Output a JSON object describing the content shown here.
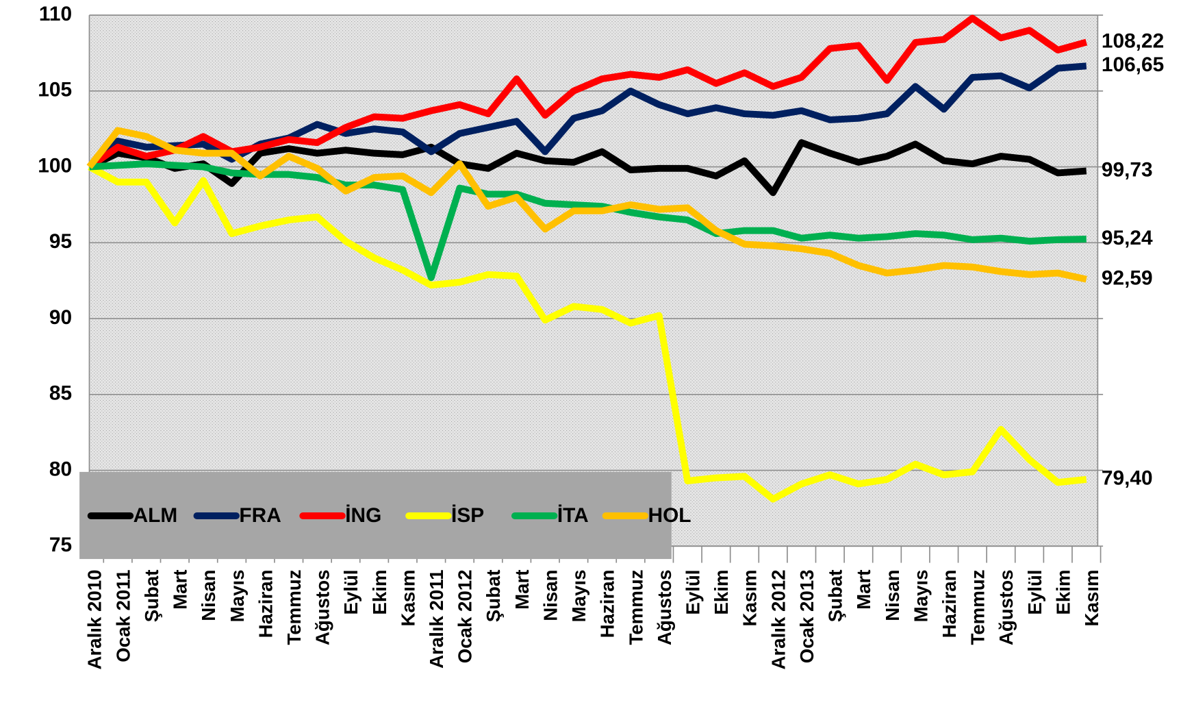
{
  "chart_data": {
    "type": "line",
    "categories": [
      "Aralık 2010",
      "Ocak 2011",
      "Şubat",
      "Mart",
      "Nisan",
      "Mayıs",
      "Haziran",
      "Temmuz",
      "Ağustos",
      "Eylül",
      "Ekim",
      "Kasım",
      "Aralık 2011",
      "Ocak 2012",
      "Şubat",
      "Mart",
      "Nisan",
      "Mayıs",
      "Haziran",
      "Temmuz",
      "Ağustos",
      "Eylül",
      "Ekim",
      "Kasım",
      "Aralık 2012",
      "Ocak 2013",
      "Şubat",
      "Mart",
      "Nisan",
      "Mayıs",
      "Haziran",
      "Temmuz",
      "Ağustos",
      "Eylül",
      "Ekim",
      "Kasım"
    ],
    "ylim": [
      75,
      110
    ],
    "yticks": [
      75,
      80,
      85,
      90,
      95,
      100,
      105,
      110
    ],
    "grid": true,
    "series": [
      {
        "name": "ALM",
        "color": "#000000",
        "values": [
          100,
          100.9,
          100.6,
          99.9,
          100.2,
          98.9,
          100.9,
          101.2,
          100.9,
          101.1,
          100.9,
          100.8,
          101.3,
          100.2,
          99.9,
          100.9,
          100.4,
          100.3,
          101.0,
          99.8,
          99.9,
          99.9,
          99.4,
          100.4,
          98.3,
          101.6,
          100.9,
          100.3,
          100.7,
          101.5,
          100.4,
          100.2,
          100.7,
          100.5,
          99.6,
          99.73
        ],
        "value_labels": [
          null,
          null,
          null,
          null,
          null,
          null,
          null,
          null,
          null,
          null,
          null,
          null,
          null,
          null,
          null,
          null,
          null,
          null,
          null,
          null,
          null,
          null,
          null,
          null,
          null,
          null,
          null,
          null,
          null,
          null,
          null,
          null,
          null,
          null,
          null,
          "99,73"
        ]
      },
      {
        "name": "FRA",
        "color": "#002060",
        "values": [
          100,
          101.7,
          101.3,
          101.4,
          101.5,
          100.5,
          101.5,
          101.9,
          102.8,
          102.2,
          102.5,
          102.3,
          101.0,
          102.2,
          102.6,
          103.0,
          101.0,
          103.2,
          103.7,
          105.0,
          104.1,
          103.5,
          103.9,
          103.5,
          103.4,
          103.7,
          103.1,
          103.2,
          103.5,
          105.3,
          103.8,
          105.9,
          106.0,
          105.2,
          106.5,
          106.65
        ],
        "value_labels": [
          null,
          null,
          null,
          null,
          null,
          null,
          null,
          null,
          null,
          null,
          null,
          null,
          null,
          null,
          null,
          null,
          null,
          null,
          null,
          null,
          null,
          null,
          null,
          null,
          null,
          null,
          null,
          null,
          null,
          null,
          null,
          null,
          null,
          null,
          null,
          "106,65"
        ]
      },
      {
        "name": "İNG",
        "color": "#ff0000",
        "values": [
          100,
          101.3,
          100.7,
          101.1,
          102.0,
          101.0,
          101.3,
          101.8,
          101.6,
          102.6,
          103.3,
          103.2,
          103.7,
          104.1,
          103.5,
          105.8,
          103.4,
          105.0,
          105.8,
          106.1,
          105.9,
          106.4,
          105.5,
          106.2,
          105.3,
          105.9,
          107.8,
          108.0,
          105.7,
          108.2,
          108.4,
          109.8,
          108.5,
          109.0,
          107.7,
          108.22
        ],
        "value_labels": [
          null,
          null,
          null,
          null,
          null,
          null,
          null,
          null,
          null,
          null,
          null,
          null,
          null,
          null,
          null,
          null,
          null,
          null,
          null,
          null,
          null,
          null,
          null,
          null,
          null,
          null,
          null,
          null,
          null,
          null,
          null,
          null,
          null,
          null,
          null,
          "108,22"
        ]
      },
      {
        "name": "İSP",
        "color": "#ffff00",
        "values": [
          100,
          99.0,
          99.0,
          96.3,
          99.1,
          95.6,
          96.1,
          96.5,
          96.7,
          95.1,
          94.0,
          93.2,
          92.2,
          92.4,
          92.9,
          92.8,
          89.9,
          90.8,
          90.6,
          89.7,
          90.2,
          79.3,
          79.5,
          79.6,
          78.1,
          79.1,
          79.7,
          79.1,
          79.4,
          80.4,
          79.7,
          79.9,
          82.7,
          80.7,
          79.2,
          79.4
        ],
        "value_labels": [
          null,
          null,
          null,
          null,
          null,
          null,
          null,
          null,
          null,
          null,
          null,
          null,
          null,
          null,
          null,
          null,
          null,
          null,
          null,
          null,
          null,
          null,
          null,
          null,
          null,
          null,
          null,
          null,
          null,
          null,
          null,
          null,
          null,
          null,
          null,
          "79,40"
        ]
      },
      {
        "name": "İTA",
        "color": "#00b050",
        "values": [
          100,
          100.1,
          100.2,
          100.1,
          100.0,
          99.6,
          99.5,
          99.5,
          99.3,
          98.8,
          98.8,
          98.5,
          92.7,
          98.6,
          98.2,
          98.2,
          97.6,
          97.5,
          97.4,
          97.0,
          96.7,
          96.5,
          95.6,
          95.8,
          95.8,
          95.3,
          95.5,
          95.3,
          95.4,
          95.6,
          95.5,
          95.2,
          95.3,
          95.1,
          95.2,
          95.24
        ],
        "value_labels": [
          null,
          null,
          null,
          null,
          null,
          null,
          null,
          null,
          null,
          null,
          null,
          null,
          null,
          null,
          null,
          null,
          null,
          null,
          null,
          null,
          null,
          null,
          null,
          null,
          null,
          null,
          null,
          null,
          null,
          null,
          null,
          null,
          null,
          null,
          null,
          "95,24"
        ]
      },
      {
        "name": "HOL",
        "color": "#ffc000",
        "values": [
          100,
          102.4,
          102.0,
          101.1,
          100.9,
          100.9,
          99.4,
          100.7,
          99.9,
          98.4,
          99.3,
          99.4,
          98.3,
          100.2,
          97.4,
          98.0,
          95.9,
          97.1,
          97.1,
          97.5,
          97.2,
          97.3,
          95.8,
          94.9,
          94.8,
          94.6,
          94.3,
          93.5,
          93.0,
          93.2,
          93.5,
          93.4,
          93.1,
          92.9,
          93.0,
          92.59
        ],
        "value_labels": [
          null,
          null,
          null,
          null,
          null,
          null,
          null,
          null,
          null,
          null,
          null,
          null,
          null,
          null,
          null,
          null,
          null,
          null,
          null,
          null,
          null,
          null,
          null,
          null,
          null,
          null,
          null,
          null,
          null,
          null,
          null,
          null,
          null,
          null,
          null,
          "92,59"
        ]
      }
    ]
  }
}
